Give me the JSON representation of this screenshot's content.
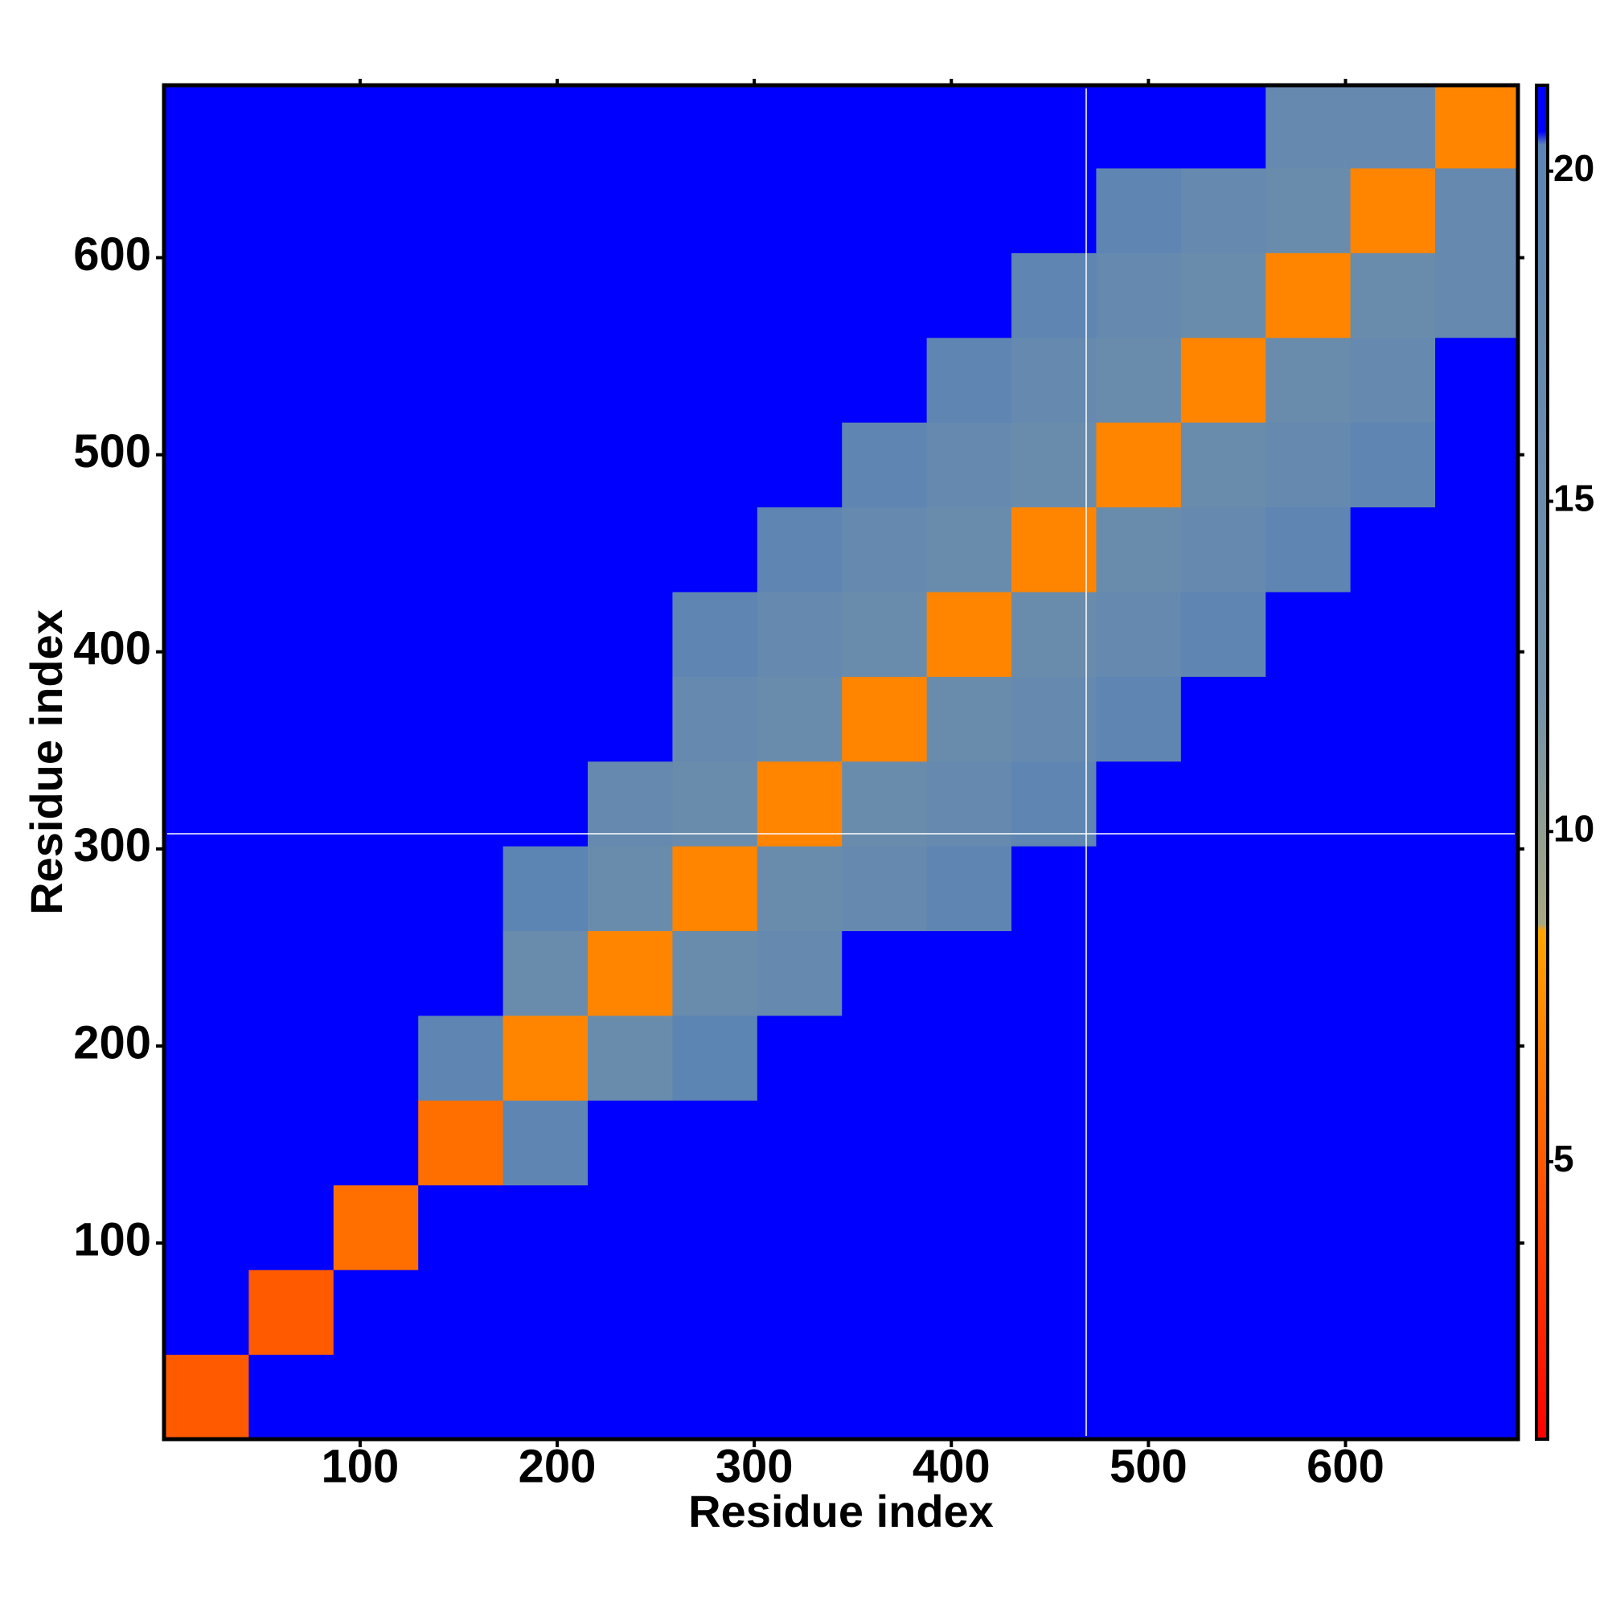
{
  "chart_data": {
    "type": "heatmap",
    "xlabel": "Residue index",
    "ylabel": "Residue index",
    "xlim": [
      0.5,
      687.5
    ],
    "ylim": [
      0.5,
      687.5
    ],
    "xticks": [
      100,
      200,
      300,
      400,
      500,
      600
    ],
    "yticks": [
      100,
      200,
      300,
      400,
      500,
      600
    ],
    "x": [
      22,
      65,
      108,
      151,
      194,
      237,
      280,
      323,
      366,
      409,
      452,
      495,
      538,
      581,
      624,
      667
    ],
    "y": [
      22,
      65,
      108,
      151,
      194,
      237,
      280,
      323,
      366,
      409,
      452,
      495,
      538,
      581,
      624,
      667
    ],
    "z": [
      [
        5,
        21,
        21,
        21,
        21,
        21,
        21,
        21,
        21,
        21,
        21,
        21,
        21,
        21,
        21,
        21
      ],
      [
        21,
        5,
        21,
        21,
        21,
        21,
        21,
        21,
        21,
        21,
        21,
        21,
        21,
        21,
        21,
        21
      ],
      [
        21,
        21,
        6,
        21,
        21,
        21,
        21,
        21,
        21,
        21,
        21,
        21,
        21,
        21,
        21,
        21
      ],
      [
        21,
        21,
        21,
        6,
        19,
        21,
        21,
        21,
        21,
        21,
        21,
        21,
        21,
        21,
        21,
        21
      ],
      [
        21,
        21,
        21,
        19,
        7,
        15,
        20,
        21,
        21,
        21,
        21,
        21,
        21,
        21,
        21,
        21
      ],
      [
        21,
        21,
        21,
        21,
        15,
        7,
        15,
        17,
        21,
        21,
        21,
        21,
        21,
        21,
        21,
        21
      ],
      [
        21,
        21,
        21,
        21,
        20,
        15,
        7,
        15,
        17,
        19,
        21,
        21,
        21,
        21,
        21,
        21
      ],
      [
        21,
        21,
        21,
        21,
        21,
        17,
        15,
        7,
        15,
        17,
        19,
        21,
        21,
        21,
        21,
        21
      ],
      [
        21,
        21,
        21,
        21,
        21,
        21,
        17,
        15,
        7,
        15,
        17,
        19,
        21,
        21,
        21,
        21
      ],
      [
        21,
        21,
        21,
        21,
        21,
        21,
        19,
        17,
        15,
        7,
        15,
        17,
        19,
        21,
        21,
        21
      ],
      [
        21,
        21,
        21,
        21,
        21,
        21,
        21,
        19,
        17,
        15,
        7,
        15,
        17,
        19,
        21,
        21
      ],
      [
        21,
        21,
        21,
        21,
        21,
        21,
        21,
        21,
        19,
        17,
        15,
        7,
        15,
        17,
        19,
        21
      ],
      [
        21,
        21,
        21,
        21,
        21,
        21,
        21,
        21,
        21,
        19,
        17,
        15,
        7,
        15,
        17,
        21
      ],
      [
        21,
        21,
        21,
        21,
        21,
        21,
        21,
        21,
        21,
        21,
        19,
        17,
        15,
        7,
        15,
        17
      ],
      [
        21,
        21,
        21,
        21,
        21,
        21,
        21,
        21,
        21,
        21,
        21,
        19,
        17,
        15,
        7,
        17
      ],
      [
        21,
        21,
        21,
        21,
        21,
        21,
        21,
        21,
        21,
        21,
        21,
        21,
        21,
        17,
        17,
        7
      ]
    ],
    "clim": [
      0.8,
      21.3
    ],
    "cticks": [
      5,
      10,
      15,
      20
    ],
    "colorscale": [
      [
        0.8,
        "#ff0000"
      ],
      [
        8.5,
        "#ffa500"
      ],
      [
        8.6,
        "#a8a882"
      ],
      [
        12,
        "#7391a8"
      ],
      [
        20.4,
        "#5b84b4"
      ],
      [
        20.6,
        "#0000ff"
      ],
      [
        21.3,
        "#0000ff"
      ]
    ]
  }
}
